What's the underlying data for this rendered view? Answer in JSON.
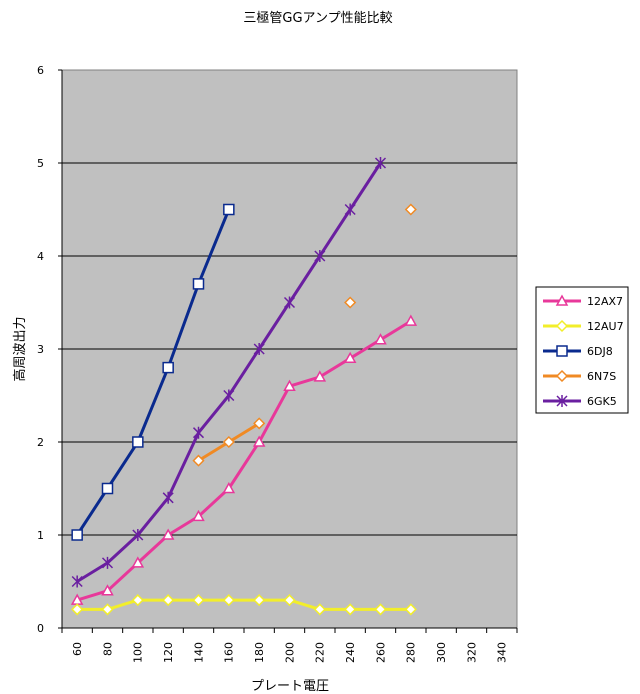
{
  "chart_data": {
    "type": "line",
    "title": "三極管GGアンプ性能比較",
    "xlabel": "プレート電圧",
    "ylabel": "高周波出力",
    "categories": [
      "60",
      "80",
      "100",
      "120",
      "140",
      "160",
      "180",
      "200",
      "220",
      "240",
      "260",
      "280",
      "300",
      "320",
      "340"
    ],
    "ylim": [
      0,
      6
    ],
    "yticks": [
      "0",
      "1",
      "2",
      "3",
      "4",
      "5",
      "6"
    ],
    "grid": "horizontal",
    "legend_position": "right",
    "plot_background": "#c0c0c0",
    "series": [
      {
        "name": "12AX7",
        "color": "#e8389a",
        "marker": "triangle",
        "values": [
          0.3,
          0.4,
          0.7,
          1.0,
          1.2,
          1.5,
          2.0,
          2.6,
          2.7,
          2.9,
          3.1,
          3.3,
          null,
          null,
          null
        ]
      },
      {
        "name": "12AU7",
        "color": "#f2ee2a",
        "marker": "diamond",
        "values": [
          0.2,
          0.2,
          0.3,
          0.3,
          0.3,
          0.3,
          0.3,
          0.3,
          0.2,
          0.2,
          0.2,
          0.2,
          null,
          null,
          null
        ]
      },
      {
        "name": "6DJ8",
        "color": "#0a2a8e",
        "marker": "square",
        "values": [
          1.0,
          1.5,
          2.0,
          2.8,
          3.7,
          4.5,
          null,
          null,
          null,
          null,
          null,
          null,
          null,
          null,
          null
        ]
      },
      {
        "name": "6N7S",
        "color": "#f08a24",
        "marker": "diamond",
        "values": [
          null,
          null,
          null,
          null,
          1.8,
          2.0,
          2.2,
          null,
          null,
          3.5,
          null,
          4.5,
          null,
          null,
          null
        ]
      },
      {
        "name": "6GK5",
        "color": "#6a1fa0",
        "marker": "asterisk",
        "values": [
          0.5,
          0.7,
          1.0,
          1.4,
          2.1,
          2.5,
          3.0,
          3.5,
          4.0,
          4.5,
          5.0,
          null,
          null,
          null,
          null
        ]
      }
    ]
  }
}
